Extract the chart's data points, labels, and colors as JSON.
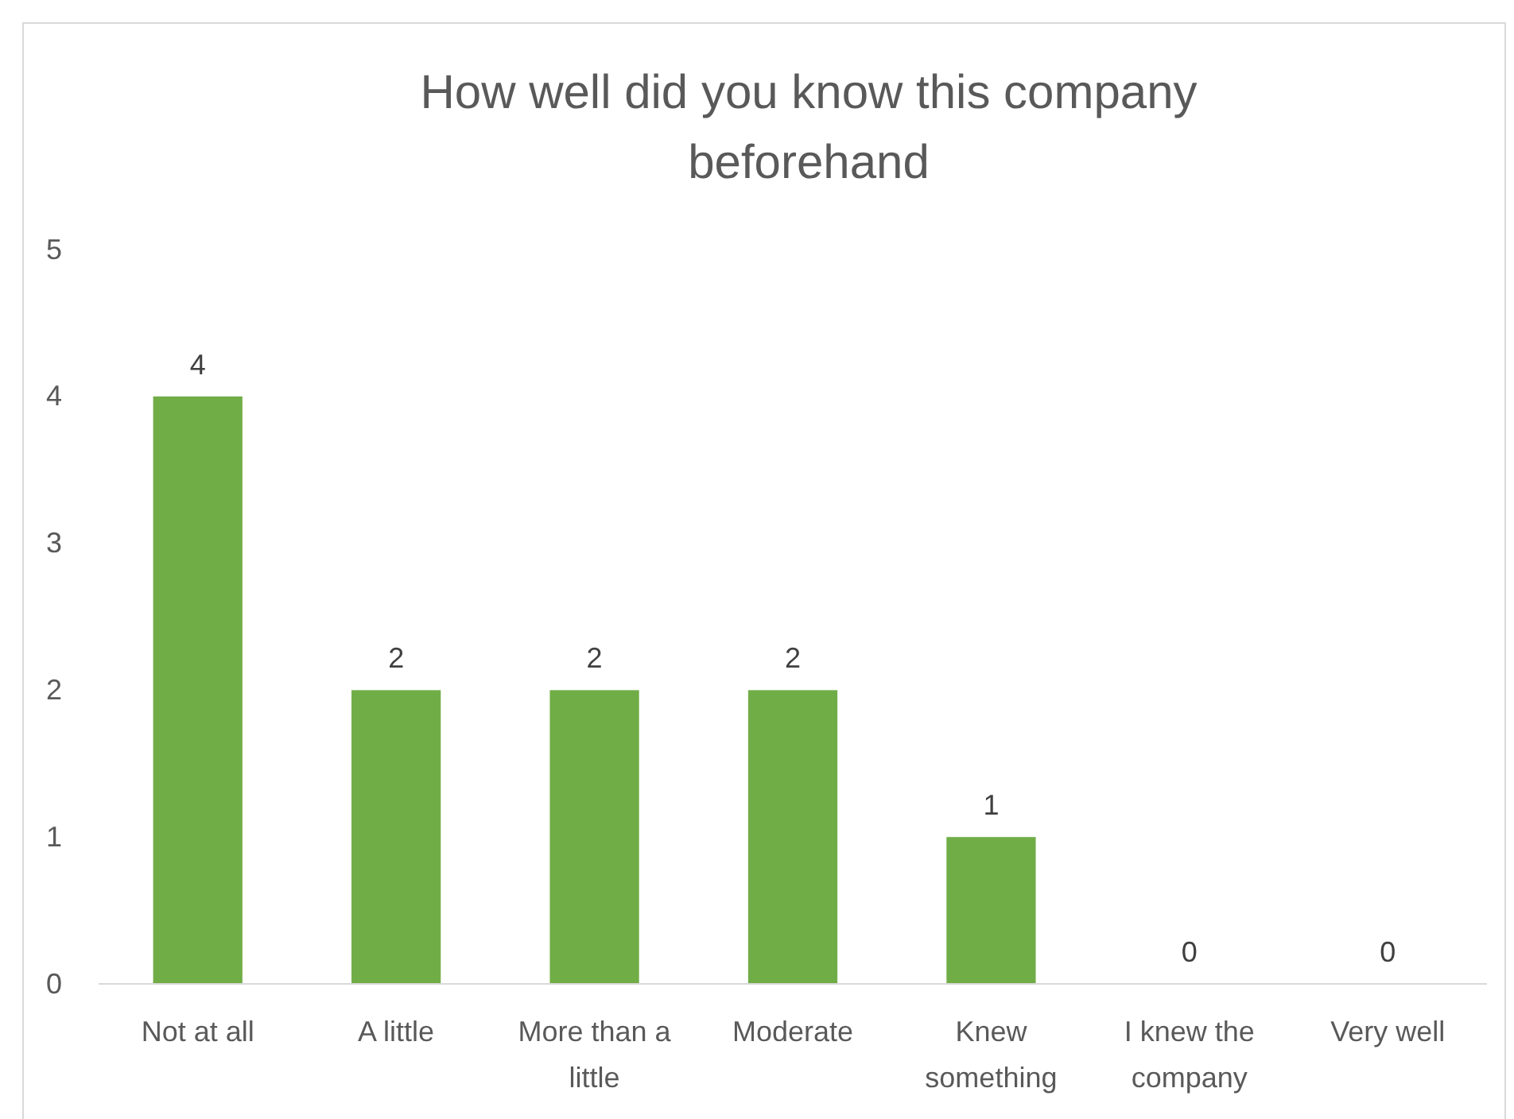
{
  "chart_data": {
    "type": "bar",
    "title": "How well did you know this company beforehand",
    "categories": [
      "Not at all",
      "A little",
      "More than a little",
      "Moderate",
      "Knew something",
      "I knew the company",
      "Very well"
    ],
    "values": [
      4,
      2,
      2,
      2,
      1,
      0,
      0
    ],
    "color": "#70ad47",
    "ylim": [
      0,
      5
    ],
    "yticks": [
      0,
      1,
      2,
      3,
      4,
      5
    ],
    "grid": false,
    "data_labels": true
  }
}
